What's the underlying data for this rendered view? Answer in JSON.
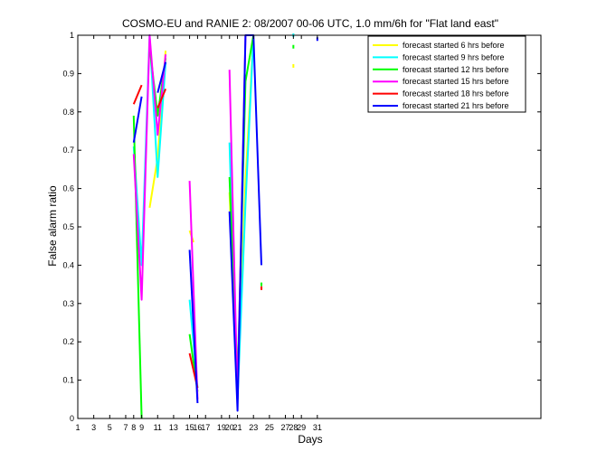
{
  "chart_data": {
    "type": "line",
    "title": "COSMO-EU and RANIE 2: 08/2007 00-06 UTC, 1.0 mm/6h for \"Flat land east\"",
    "xlabel": "Days",
    "ylabel": "False alarm ratio",
    "xlim": [
      1,
      59
    ],
    "ylim": [
      0,
      1
    ],
    "xticks": [
      1,
      3,
      5,
      7,
      8,
      9,
      11,
      13,
      15,
      16,
      17,
      19,
      20,
      21,
      23,
      25,
      27,
      28,
      29,
      31
    ],
    "yticks": [
      0,
      0.1,
      0.2,
      0.3,
      0.4,
      0.5,
      0.6,
      0.7,
      0.8,
      0.9,
      1
    ],
    "grid": false,
    "legend_position": "top-right",
    "series": [
      {
        "name": "forecast started 6 hrs before",
        "color": "#ffff00",
        "segments": [
          [
            [
              10,
              0.55
            ],
            [
              11,
              0.68
            ],
            [
              12,
              0.96
            ]
          ],
          [
            [
              15,
              0.49
            ],
            [
              15.5,
              0.46
            ]
          ],
          [
            [
              20,
              0.59
            ],
            [
              21,
              0.07
            ],
            [
              22,
              0.62
            ],
            [
              23,
              1.0
            ]
          ],
          [
            [
              28,
              0.92
            ]
          ]
        ]
      },
      {
        "name": "forecast started 9 hrs before",
        "color": "#00ffff",
        "segments": [
          [
            [
              8,
              0.71
            ],
            [
              9,
              0.4
            ],
            [
              10,
              1.0
            ],
            [
              11,
              0.63
            ],
            [
              12,
              0.93
            ]
          ],
          [
            [
              15,
              0.31
            ],
            [
              16,
              0.08
            ]
          ],
          [
            [
              20,
              0.72
            ],
            [
              21,
              0.05
            ],
            [
              22,
              0.56
            ],
            [
              23,
              1.0
            ]
          ],
          [
            [
              28,
              1.0
            ]
          ]
        ]
      },
      {
        "name": "forecast started 12 hrs before",
        "color": "#00ff00",
        "segments": [
          [
            [
              8,
              0.79
            ],
            [
              9,
              0.0
            ]
          ],
          [
            [
              10,
              0.97
            ],
            [
              11,
              0.79
            ],
            [
              12,
              0.94
            ]
          ],
          [
            [
              15,
              0.22
            ],
            [
              16,
              0.07
            ]
          ],
          [
            [
              20,
              0.63
            ],
            [
              21,
              0.1
            ],
            [
              22,
              0.88
            ],
            [
              23,
              1.0
            ]
          ],
          [
            [
              24,
              0.35
            ]
          ],
          [
            [
              28,
              0.97
            ]
          ]
        ]
      },
      {
        "name": "forecast started 15 hrs before",
        "color": "#ff00ff",
        "segments": [
          [
            [
              8,
              0.69
            ],
            [
              9,
              0.31
            ],
            [
              10,
              1.0
            ],
            [
              11,
              0.74
            ],
            [
              12,
              0.95
            ]
          ],
          [
            [
              15,
              0.62
            ],
            [
              16,
              0.05
            ]
          ],
          [
            [
              20,
              0.91
            ],
            [
              21,
              0.05
            ],
            [
              22,
              1.0
            ],
            [
              23,
              1.0
            ]
          ]
        ]
      },
      {
        "name": "forecast started 18 hrs before",
        "color": "#ff0000",
        "segments": [
          [
            [
              8,
              0.82
            ],
            [
              9,
              0.87
            ]
          ],
          [
            [
              11,
              0.81
            ],
            [
              12,
              0.86
            ]
          ],
          [
            [
              15,
              0.17
            ],
            [
              16,
              0.08
            ]
          ],
          [
            [
              24,
              0.34
            ]
          ]
        ]
      },
      {
        "name": "forecast started 21 hrs before",
        "color": "#0000ff",
        "segments": [
          [
            [
              8,
              0.72
            ],
            [
              9,
              0.84
            ]
          ],
          [
            [
              11,
              0.85
            ],
            [
              12,
              0.93
            ]
          ],
          [
            [
              15,
              0.44
            ],
            [
              16,
              0.04
            ]
          ],
          [
            [
              20,
              0.54
            ],
            [
              21,
              0.02
            ],
            [
              22,
              1.0
            ],
            [
              23,
              1.0
            ],
            [
              24,
              0.4
            ]
          ],
          [
            [
              31,
              0.99
            ]
          ]
        ]
      }
    ]
  }
}
